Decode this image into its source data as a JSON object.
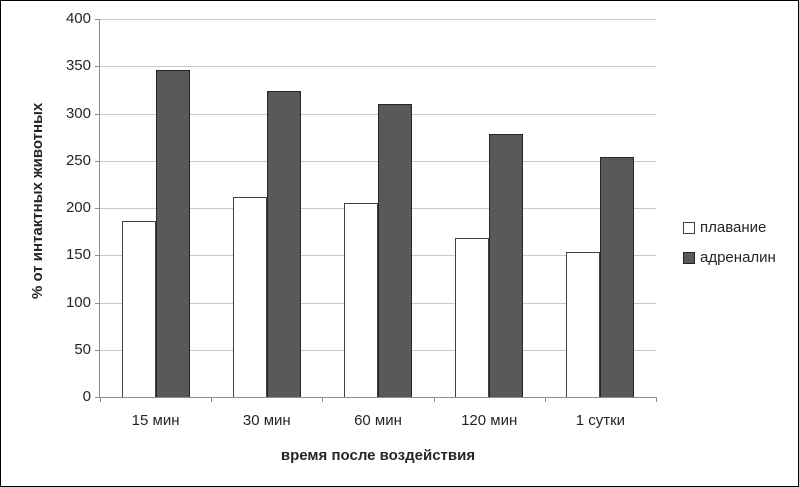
{
  "chart_data": {
    "type": "bar",
    "categories": [
      "15 мин",
      "30 мин",
      "60 мин",
      "120 мин",
      "1 сутки"
    ],
    "series": [
      {
        "name": "плавание",
        "values": [
          186,
          212,
          205,
          168,
          153
        ],
        "fill": "#ffffff",
        "border": "#404040"
      },
      {
        "name": "адреналин",
        "values": [
          346,
          324,
          310,
          278,
          254
        ],
        "fill": "#595959",
        "border": "#262626"
      }
    ],
    "title": "",
    "xlabel": "время после воздействия",
    "ylabel": "% от интактных животных",
    "ylim": [
      0,
      400
    ],
    "ytick_step": 50,
    "grid": true,
    "legend_position": "right"
  },
  "colors": {
    "gridline": "#c9c9c9",
    "axis": "#8c8c8c",
    "text": "#262626",
    "frame_border": "#000000",
    "background": "#ffffff"
  }
}
